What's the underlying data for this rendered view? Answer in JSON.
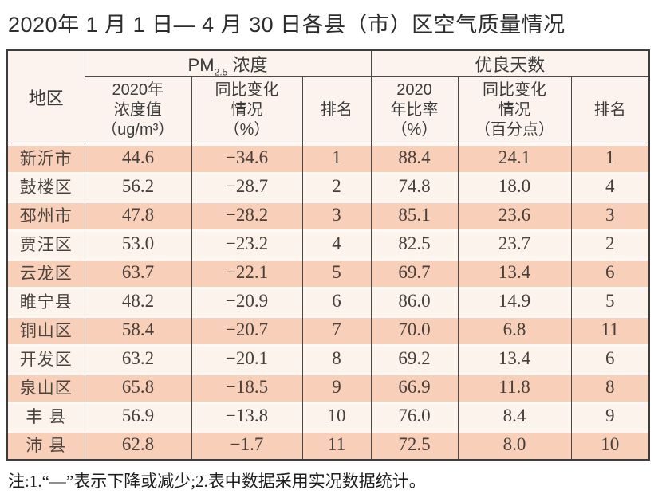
{
  "title": "2020年 1 月 1 日— 4 月 30 日各县（市）区空气质量情况",
  "table": {
    "region_header": "地区",
    "pm_group": {
      "prefix": "PM",
      "sub": "2.5",
      "suffix": " 浓度"
    },
    "good_group": "优良天数",
    "sub_headers": {
      "pm_value": "2020年\n浓度值\n（ug/m³）",
      "pm_change": "同比变化\n情况\n（%）",
      "pm_rank": "排名",
      "good_rate": "2020\n年比率\n（%）",
      "good_change": "同比变化\n情况\n（百分点）",
      "good_rank": "排名"
    },
    "rows": [
      [
        "新沂市",
        "44.6",
        "−34.6",
        "1",
        "88.4",
        "24.1",
        "1"
      ],
      [
        "鼓楼区",
        "56.2",
        "−28.7",
        "2",
        "74.8",
        "18.0",
        "4"
      ],
      [
        "邳州市",
        "47.8",
        "−28.2",
        "3",
        "85.1",
        "23.6",
        "3"
      ],
      [
        "贾汪区",
        "53.0",
        "−23.2",
        "4",
        "82.5",
        "23.7",
        "2"
      ],
      [
        "云龙区",
        "63.7",
        "−22.1",
        "5",
        "69.7",
        "13.4",
        "6"
      ],
      [
        "睢宁县",
        "48.2",
        "−20.9",
        "6",
        "86.0",
        "14.9",
        "5"
      ],
      [
        "铜山区",
        "58.4",
        "−20.7",
        "7",
        "70.0",
        "6.8",
        "11"
      ],
      [
        "开发区",
        "63.2",
        "−20.1",
        "8",
        "69.2",
        "13.4",
        "6"
      ],
      [
        "泉山区",
        "65.8",
        "−18.5",
        "9",
        "66.9",
        "11.8",
        "8"
      ],
      [
        "丰 县",
        "56.9",
        "−13.8",
        "10",
        "76.0",
        "8.4",
        "9"
      ],
      [
        "沛 县",
        "62.8",
        "−1.7",
        "11",
        "72.5",
        "8.0",
        "10"
      ]
    ]
  },
  "note": "注:1.“—”表示下降或减少;2.表中数据采用实况数据统计。",
  "colors": {
    "row_stripe": "#f8cfb9",
    "row_light": "#fcf3ed",
    "header_bg": "#fdf3ee",
    "border": "#4a4a4a",
    "row_gap": "#fdf9f6",
    "text_dark": "#3b3b3b",
    "text_data": "#473f3a"
  }
}
